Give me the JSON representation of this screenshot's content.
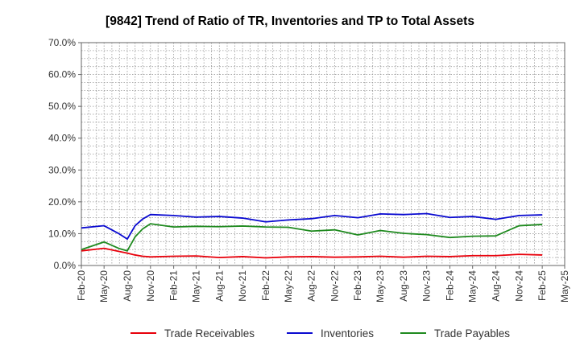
{
  "chart_data": {
    "type": "line",
    "title": "[9842]  Trend of Ratio of TR, Inventories and TP to Total Assets",
    "xlabel": "",
    "ylabel": "",
    "ylim": [
      0,
      70
    ],
    "y_ticks": [
      0,
      10,
      20,
      30,
      40,
      50,
      60,
      70
    ],
    "y_tick_labels": [
      "0.0%",
      "10.0%",
      "20.0%",
      "30.0%",
      "40.0%",
      "50.0%",
      "60.0%",
      "70.0%"
    ],
    "x_tick_labels": [
      "Feb-20",
      "May-20",
      "Aug-20",
      "Nov-20",
      "Feb-21",
      "May-21",
      "Aug-21",
      "Nov-21",
      "Feb-22",
      "May-22",
      "Aug-22",
      "Nov-22",
      "Feb-23",
      "May-23",
      "Aug-23",
      "Nov-23",
      "Feb-24",
      "May-24",
      "Aug-24",
      "Nov-24",
      "Feb-25",
      "May-25"
    ],
    "grid": true,
    "legend_position": "bottom",
    "x": [
      "2020-02",
      "2020-05",
      "2020-07",
      "2020-08",
      "2020-09",
      "2020-10",
      "2020-11",
      "2021-02",
      "2021-05",
      "2021-08",
      "2021-11",
      "2022-02",
      "2022-05",
      "2022-08",
      "2022-11",
      "2023-02",
      "2023-05",
      "2023-08",
      "2023-11",
      "2024-02",
      "2024-05",
      "2024-08",
      "2024-11",
      "2025-02"
    ],
    "series": [
      {
        "name": "Trade Receivables",
        "color": "#e8000b",
        "values": [
          4.6,
          5.4,
          4.4,
          3.9,
          3.3,
          2.9,
          2.7,
          2.9,
          3.0,
          2.5,
          2.8,
          2.4,
          2.7,
          2.8,
          2.6,
          2.7,
          2.9,
          2.6,
          2.9,
          2.8,
          3.1,
          3.1,
          3.5,
          3.3
        ]
      },
      {
        "name": "Inventories",
        "color": "#0a0ad0",
        "values": [
          11.8,
          12.5,
          9.9,
          8.3,
          12.5,
          14.6,
          16.0,
          15.7,
          15.2,
          15.4,
          14.9,
          13.7,
          14.3,
          14.7,
          15.7,
          15.0,
          16.2,
          16.0,
          16.3,
          15.1,
          15.4,
          14.5,
          15.7,
          15.9
        ]
      },
      {
        "name": "Trade Payables",
        "color": "#1f8a1f",
        "values": [
          5.0,
          7.4,
          5.3,
          4.6,
          9.0,
          11.5,
          13.1,
          12.1,
          12.3,
          12.2,
          12.4,
          12.1,
          12.0,
          10.8,
          11.2,
          9.6,
          11.0,
          10.1,
          9.7,
          8.8,
          9.2,
          9.3,
          12.5,
          12.9
        ]
      }
    ]
  }
}
